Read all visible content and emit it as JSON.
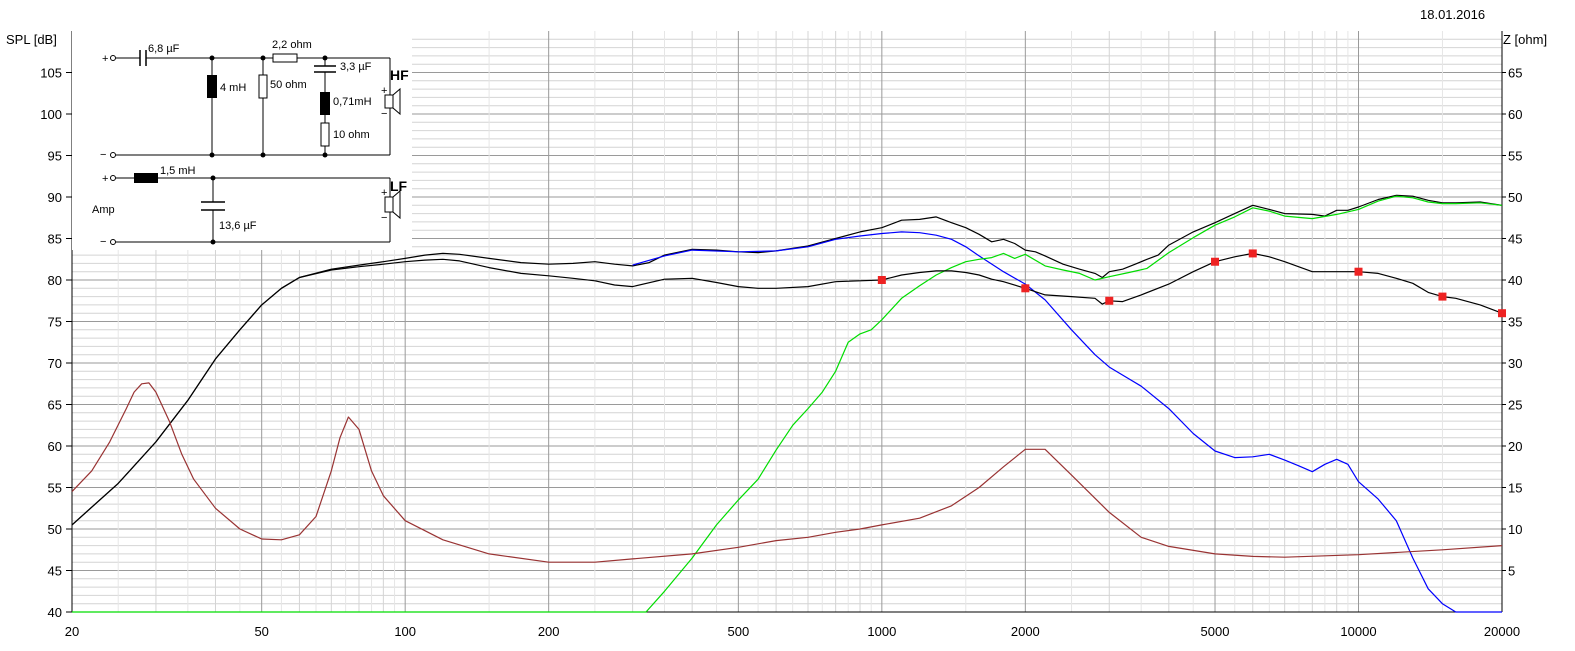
{
  "date": "18.01.2016",
  "chart_data": {
    "type": "line",
    "title": "",
    "xlabel": "",
    "ylabel_left": "SPL [dB]",
    "ylabel_right": "Z [ohm]",
    "x_scale": "log",
    "xlim": [
      20,
      20000
    ],
    "ylim_left": [
      40,
      110
    ],
    "ylim_right": [
      0,
      70
    ],
    "grid": true,
    "x_ticks": [
      20,
      50,
      100,
      200,
      500,
      1000,
      2000,
      5000,
      10000,
      20000
    ],
    "y_ticks_left": [
      40,
      45,
      50,
      55,
      60,
      65,
      70,
      75,
      80,
      85,
      90,
      95,
      100,
      105
    ],
    "y_ticks_right": [
      5,
      10,
      15,
      20,
      25,
      30,
      35,
      40,
      45,
      50,
      55,
      60,
      65
    ],
    "series": [
      {
        "axis": "left",
        "color": "#000000",
        "points": [
          [
            20,
            50.5
          ],
          [
            25,
            55.5
          ],
          [
            30,
            60.5
          ],
          [
            35,
            65.5
          ],
          [
            40,
            70.5
          ],
          [
            45,
            74.0
          ],
          [
            50,
            77.0
          ],
          [
            55,
            79.0
          ],
          [
            60,
            80.3
          ],
          [
            70,
            81.3
          ],
          [
            80,
            81.8
          ],
          [
            90,
            82.2
          ],
          [
            100,
            82.6
          ],
          [
            110,
            83.0
          ],
          [
            120,
            83.2
          ],
          [
            130,
            83.1
          ],
          [
            150,
            82.6
          ],
          [
            175,
            82.1
          ],
          [
            200,
            81.9
          ],
          [
            225,
            82.0
          ],
          [
            250,
            82.2
          ],
          [
            275,
            81.9
          ],
          [
            300,
            81.7
          ],
          [
            325,
            82.1
          ],
          [
            350,
            83.0
          ],
          [
            400,
            83.7
          ],
          [
            450,
            83.6
          ],
          [
            500,
            83.4
          ],
          [
            550,
            83.3
          ],
          [
            600,
            83.5
          ],
          [
            700,
            84.1
          ],
          [
            800,
            85.0
          ],
          [
            900,
            85.8
          ],
          [
            1000,
            86.3
          ],
          [
            1100,
            87.2
          ],
          [
            1200,
            87.3
          ],
          [
            1300,
            87.6
          ],
          [
            1400,
            86.9
          ],
          [
            1500,
            86.3
          ],
          [
            1600,
            85.5
          ],
          [
            1700,
            84.6
          ],
          [
            1800,
            84.9
          ],
          [
            1900,
            84.4
          ],
          [
            2000,
            83.6
          ],
          [
            2100,
            83.4
          ],
          [
            2200,
            82.9
          ],
          [
            2400,
            81.9
          ],
          [
            2600,
            81.3
          ],
          [
            2800,
            80.8
          ],
          [
            2900,
            80.3
          ],
          [
            3000,
            81.0
          ],
          [
            3200,
            81.3
          ],
          [
            3400,
            81.9
          ],
          [
            3600,
            82.5
          ],
          [
            3800,
            83.0
          ],
          [
            4000,
            84.2
          ],
          [
            4500,
            85.8
          ],
          [
            5000,
            86.9
          ],
          [
            5500,
            88.0
          ],
          [
            6000,
            89.0
          ],
          [
            6500,
            88.5
          ],
          [
            7000,
            88.0
          ],
          [
            8000,
            87.9
          ],
          [
            8500,
            87.7
          ],
          [
            9000,
            88.4
          ],
          [
            9500,
            88.4
          ],
          [
            10000,
            88.8
          ],
          [
            11000,
            89.7
          ],
          [
            12000,
            90.2
          ],
          [
            13000,
            90.1
          ],
          [
            14000,
            89.6
          ],
          [
            15000,
            89.3
          ],
          [
            16000,
            89.3
          ],
          [
            18000,
            89.4
          ],
          [
            20000,
            89.0
          ]
        ]
      },
      {
        "axis": "left",
        "color": "#0000ff",
        "points": [
          [
            300,
            81.8
          ],
          [
            350,
            82.9
          ],
          [
            400,
            83.6
          ],
          [
            500,
            83.4
          ],
          [
            600,
            83.5
          ],
          [
            700,
            84.0
          ],
          [
            800,
            84.9
          ],
          [
            900,
            85.3
          ],
          [
            1000,
            85.6
          ],
          [
            1100,
            85.8
          ],
          [
            1200,
            85.7
          ],
          [
            1300,
            85.4
          ],
          [
            1400,
            84.9
          ],
          [
            1500,
            84.0
          ],
          [
            1600,
            82.9
          ],
          [
            1800,
            81.0
          ],
          [
            2000,
            79.5
          ],
          [
            2200,
            77.6
          ],
          [
            2500,
            74.0
          ],
          [
            2800,
            71.0
          ],
          [
            3000,
            69.5
          ],
          [
            3500,
            67.2
          ],
          [
            4000,
            64.5
          ],
          [
            4500,
            61.5
          ],
          [
            5000,
            59.4
          ],
          [
            5500,
            58.6
          ],
          [
            6000,
            58.7
          ],
          [
            6500,
            59.0
          ],
          [
            7000,
            58.3
          ],
          [
            7500,
            57.6
          ],
          [
            8000,
            56.9
          ],
          [
            8500,
            57.8
          ],
          [
            9000,
            58.4
          ],
          [
            9500,
            57.8
          ],
          [
            10000,
            55.7
          ],
          [
            11000,
            53.6
          ],
          [
            12000,
            51.0
          ],
          [
            13000,
            46.5
          ],
          [
            14000,
            42.8
          ],
          [
            15000,
            41.0
          ],
          [
            16000,
            40.0
          ],
          [
            20000,
            40.0
          ]
        ]
      },
      {
        "axis": "left",
        "color": "#00dd00",
        "points": [
          [
            20,
            40.0
          ],
          [
            320,
            40.0
          ],
          [
            350,
            42.5
          ],
          [
            400,
            46.5
          ],
          [
            450,
            50.5
          ],
          [
            500,
            53.5
          ],
          [
            550,
            56.0
          ],
          [
            600,
            59.5
          ],
          [
            650,
            62.5
          ],
          [
            700,
            64.5
          ],
          [
            750,
            66.5
          ],
          [
            800,
            69.0
          ],
          [
            850,
            72.5
          ],
          [
            900,
            73.5
          ],
          [
            950,
            74.0
          ],
          [
            1000,
            75.2
          ],
          [
            1100,
            77.8
          ],
          [
            1200,
            79.3
          ],
          [
            1300,
            80.6
          ],
          [
            1400,
            81.5
          ],
          [
            1500,
            82.2
          ],
          [
            1600,
            82.5
          ],
          [
            1700,
            82.7
          ],
          [
            1800,
            83.2
          ],
          [
            1900,
            82.6
          ],
          [
            2000,
            83.1
          ],
          [
            2200,
            81.7
          ],
          [
            2400,
            81.2
          ],
          [
            2600,
            80.8
          ],
          [
            2800,
            80.0
          ],
          [
            3000,
            80.4
          ],
          [
            3300,
            80.9
          ],
          [
            3600,
            81.4
          ],
          [
            4000,
            83.3
          ],
          [
            4500,
            85.1
          ],
          [
            5000,
            86.6
          ],
          [
            5500,
            87.6
          ],
          [
            6000,
            88.7
          ],
          [
            6500,
            88.3
          ],
          [
            7000,
            87.7
          ],
          [
            8000,
            87.4
          ],
          [
            9000,
            87.9
          ],
          [
            10000,
            88.5
          ],
          [
            11000,
            89.5
          ],
          [
            12000,
            90.1
          ],
          [
            13000,
            89.9
          ],
          [
            14000,
            89.4
          ],
          [
            15000,
            89.2
          ],
          [
            16000,
            89.2
          ],
          [
            18000,
            89.3
          ],
          [
            20000,
            89.0
          ]
        ]
      },
      {
        "axis": "left",
        "color": "#000000",
        "markers": true,
        "marker_color": "#ee2222",
        "points": [
          [
            20,
            50.5
          ],
          [
            25,
            55.5
          ],
          [
            30,
            60.5
          ],
          [
            35,
            65.5
          ],
          [
            40,
            70.5
          ],
          [
            45,
            74.0
          ],
          [
            50,
            77.0
          ],
          [
            55,
            79.0
          ],
          [
            60,
            80.3
          ],
          [
            70,
            81.2
          ],
          [
            80,
            81.6
          ],
          [
            90,
            81.9
          ],
          [
            100,
            82.2
          ],
          [
            110,
            82.4
          ],
          [
            120,
            82.5
          ],
          [
            130,
            82.3
          ],
          [
            150,
            81.5
          ],
          [
            175,
            80.8
          ],
          [
            200,
            80.5
          ],
          [
            225,
            80.2
          ],
          [
            250,
            79.9
          ],
          [
            275,
            79.4
          ],
          [
            300,
            79.2
          ],
          [
            350,
            80.1
          ],
          [
            400,
            80.2
          ],
          [
            450,
            79.7
          ],
          [
            500,
            79.2
          ],
          [
            550,
            79.0
          ],
          [
            600,
            79.0
          ],
          [
            700,
            79.2
          ],
          [
            800,
            79.8
          ],
          [
            900,
            79.9
          ],
          [
            1000,
            80.0
          ],
          [
            1100,
            80.6
          ],
          [
            1200,
            80.9
          ],
          [
            1300,
            81.1
          ],
          [
            1400,
            81.1
          ],
          [
            1500,
            80.9
          ],
          [
            1600,
            80.6
          ],
          [
            1700,
            80.1
          ],
          [
            1800,
            79.8
          ],
          [
            2000,
            79.0
          ],
          [
            2200,
            78.2
          ],
          [
            2500,
            78.0
          ],
          [
            2800,
            77.8
          ],
          [
            2900,
            77.1
          ],
          [
            3000,
            77.5
          ],
          [
            3200,
            77.4
          ],
          [
            3500,
            78.2
          ],
          [
            4000,
            79.5
          ],
          [
            4500,
            81.0
          ],
          [
            5000,
            82.2
          ],
          [
            5500,
            82.8
          ],
          [
            6000,
            83.2
          ],
          [
            6500,
            82.8
          ],
          [
            7000,
            82.2
          ],
          [
            8000,
            81.0
          ],
          [
            9000,
            81.0
          ],
          [
            10000,
            81.0
          ],
          [
            11000,
            80.8
          ],
          [
            12000,
            80.2
          ],
          [
            13000,
            79.6
          ],
          [
            14000,
            78.5
          ],
          [
            15000,
            78.0
          ],
          [
            16000,
            77.8
          ],
          [
            18000,
            77.0
          ],
          [
            20000,
            76.0
          ]
        ],
        "marker_points": [
          [
            1000,
            80.0
          ],
          [
            2000,
            79.0
          ],
          [
            3000,
            77.5
          ],
          [
            5000,
            82.2
          ],
          [
            6000,
            83.2
          ],
          [
            10000,
            81.0
          ],
          [
            15000,
            78.0
          ],
          [
            20000,
            76.0
          ]
        ]
      },
      {
        "axis": "right",
        "color": "#993333",
        "points": [
          [
            20,
            14.5
          ],
          [
            22,
            17.0
          ],
          [
            24,
            20.5
          ],
          [
            26,
            24.5
          ],
          [
            27,
            26.5
          ],
          [
            28,
            27.5
          ],
          [
            29,
            27.6
          ],
          [
            30,
            26.5
          ],
          [
            32,
            23.0
          ],
          [
            34,
            19.0
          ],
          [
            36,
            16.0
          ],
          [
            40,
            12.5
          ],
          [
            45,
            10.0
          ],
          [
            50,
            8.8
          ],
          [
            55,
            8.7
          ],
          [
            60,
            9.3
          ],
          [
            65,
            11.5
          ],
          [
            70,
            17.0
          ],
          [
            73,
            21.0
          ],
          [
            76,
            23.5
          ],
          [
            80,
            22.0
          ],
          [
            85,
            17.0
          ],
          [
            90,
            14.0
          ],
          [
            100,
            11.0
          ],
          [
            120,
            8.7
          ],
          [
            150,
            7.0
          ],
          [
            200,
            6.0
          ],
          [
            250,
            6.0
          ],
          [
            300,
            6.4
          ],
          [
            400,
            7.0
          ],
          [
            500,
            7.8
          ],
          [
            600,
            8.6
          ],
          [
            700,
            9.0
          ],
          [
            800,
            9.6
          ],
          [
            900,
            10.0
          ],
          [
            1000,
            10.5
          ],
          [
            1200,
            11.3
          ],
          [
            1400,
            12.8
          ],
          [
            1600,
            15.0
          ],
          [
            1800,
            17.5
          ],
          [
            2000,
            19.6
          ],
          [
            2200,
            19.6
          ],
          [
            2500,
            16.5
          ],
          [
            3000,
            12.0
          ],
          [
            3500,
            9.0
          ],
          [
            4000,
            7.9
          ],
          [
            5000,
            7.0
          ],
          [
            6000,
            6.7
          ],
          [
            7000,
            6.6
          ],
          [
            10000,
            6.9
          ],
          [
            15000,
            7.5
          ],
          [
            20000,
            8.0
          ]
        ]
      }
    ]
  },
  "schematic": {
    "hf_cap1": "6,8 µF",
    "hf_res1": "2,2 ohm",
    "hf_cap2": "3,3 µF",
    "hf_ind1": "4 mH",
    "hf_res_shunt": "50 ohm",
    "hf_ind2": "0,71mH",
    "hf_res2": "10 ohm",
    "hf_label": "HF",
    "lf_ind": "1,5 mH",
    "lf_cap": "13,6 µF",
    "lf_label": "LF",
    "amp_label": "Amp",
    "plus": "+",
    "minus": "−"
  }
}
